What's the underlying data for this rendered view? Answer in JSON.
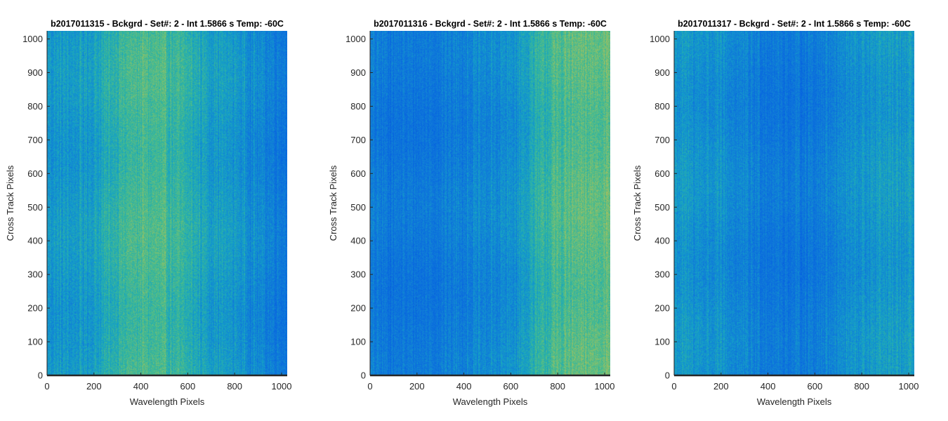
{
  "chart_data": [
    {
      "type": "heatmap",
      "title": "b2017011315 - Bckgrd - Set#: 2 - Int 1.5866 s Temp: -60C",
      "xlabel": "Wavelength Pixels",
      "ylabel": "Cross Track Pixels",
      "xlim": [
        0,
        1024
      ],
      "ylim": [
        0,
        1024
      ],
      "xticks": [
        0,
        200,
        400,
        600,
        800,
        1000
      ],
      "yticks": [
        0,
        100,
        200,
        300,
        400,
        500,
        600,
        700,
        800,
        900,
        1000
      ],
      "colormap": "parula",
      "column_intensity_profile": {
        "x": [
          0,
          100,
          200,
          300,
          400,
          500,
          600,
          700,
          800,
          900,
          1000,
          1024
        ],
        "level": [
          0.42,
          0.42,
          0.45,
          0.55,
          0.6,
          0.58,
          0.52,
          0.45,
          0.42,
          0.36,
          0.3,
          0.28
        ]
      }
    },
    {
      "type": "heatmap",
      "title": "b2017011316 - Bckgrd - Set#: 2 - Int 1.5866 s Temp: -60C",
      "xlabel": "Wavelength Pixels",
      "ylabel": "Cross Track Pixels",
      "xlim": [
        0,
        1024
      ],
      "ylim": [
        0,
        1024
      ],
      "xticks": [
        0,
        200,
        400,
        600,
        800,
        1000
      ],
      "yticks": [
        0,
        100,
        200,
        300,
        400,
        500,
        600,
        700,
        800,
        900,
        1000
      ],
      "colormap": "parula",
      "column_intensity_profile": {
        "x": [
          0,
          100,
          200,
          300,
          400,
          500,
          600,
          700,
          800,
          900,
          1000,
          1024
        ],
        "level": [
          0.3,
          0.28,
          0.28,
          0.3,
          0.33,
          0.35,
          0.38,
          0.5,
          0.6,
          0.62,
          0.65,
          0.65
        ]
      }
    },
    {
      "type": "heatmap",
      "title": "b2017011317 - Bckgrd - Set#: 2 - Int 1.5866 s Temp: -60C",
      "xlabel": "Wavelength Pixels",
      "ylabel": "Cross Track Pixels",
      "xlim": [
        0,
        1024
      ],
      "ylim": [
        0,
        1024
      ],
      "xticks": [
        0,
        200,
        400,
        600,
        800,
        1000
      ],
      "yticks": [
        0,
        100,
        200,
        300,
        400,
        500,
        600,
        700,
        800,
        900,
        1000
      ],
      "colormap": "parula",
      "column_intensity_profile": {
        "x": [
          0,
          100,
          200,
          300,
          400,
          500,
          600,
          700,
          800,
          900,
          1000,
          1024
        ],
        "level": [
          0.42,
          0.4,
          0.38,
          0.33,
          0.3,
          0.28,
          0.3,
          0.36,
          0.4,
          0.42,
          0.42,
          0.42
        ]
      }
    }
  ]
}
